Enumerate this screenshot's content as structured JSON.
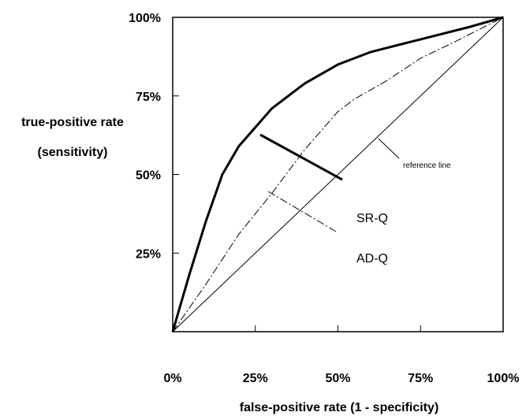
{
  "chart_data": {
    "type": "line",
    "title": "",
    "xlabel": "false-positive rate (1 - specificity)",
    "ylabel_line1": "true-positive rate",
    "ylabel_line2": "(sensitivity)",
    "xlim": [
      0,
      100
    ],
    "ylim": [
      0,
      100
    ],
    "x_ticks": [
      {
        "value": 0,
        "label": "0%"
      },
      {
        "value": 25,
        "label": "25%"
      },
      {
        "value": 50,
        "label": "50%"
      },
      {
        "value": 75,
        "label": "75%"
      },
      {
        "value": 100,
        "label": "100%"
      }
    ],
    "y_ticks": [
      {
        "value": 25,
        "label": "25%"
      },
      {
        "value": 50,
        "label": "50%"
      },
      {
        "value": 75,
        "label": "75%"
      },
      {
        "value": 100,
        "label": "100%"
      }
    ],
    "grid": false,
    "series": [
      {
        "name": "SR-Q",
        "style": "solid-thick",
        "x": [
          0,
          5,
          10,
          15,
          20,
          25,
          30,
          40,
          50,
          60,
          75,
          90,
          100
        ],
        "y": [
          0,
          18,
          35,
          50,
          59,
          65,
          71,
          79,
          85,
          89,
          93,
          97,
          100
        ]
      },
      {
        "name": "AD-Q",
        "style": "dash-dot",
        "x": [
          0,
          10,
          20,
          30,
          40,
          50,
          55,
          65,
          75,
          85,
          100
        ],
        "y": [
          0,
          15,
          31,
          44,
          58,
          70,
          74,
          80,
          87,
          92,
          100
        ]
      },
      {
        "name": "reference line",
        "style": "solid-thin",
        "x": [
          0,
          100
        ],
        "y": [
          0,
          100
        ]
      }
    ],
    "annotations": [
      {
        "text": "reference line",
        "target": "reference line"
      },
      {
        "text": "SR-Q",
        "target": "SR-Q"
      },
      {
        "text": "AD-Q",
        "target": "AD-Q"
      }
    ],
    "colors": {
      "ink": "#000000",
      "background": "#ffffff"
    }
  }
}
